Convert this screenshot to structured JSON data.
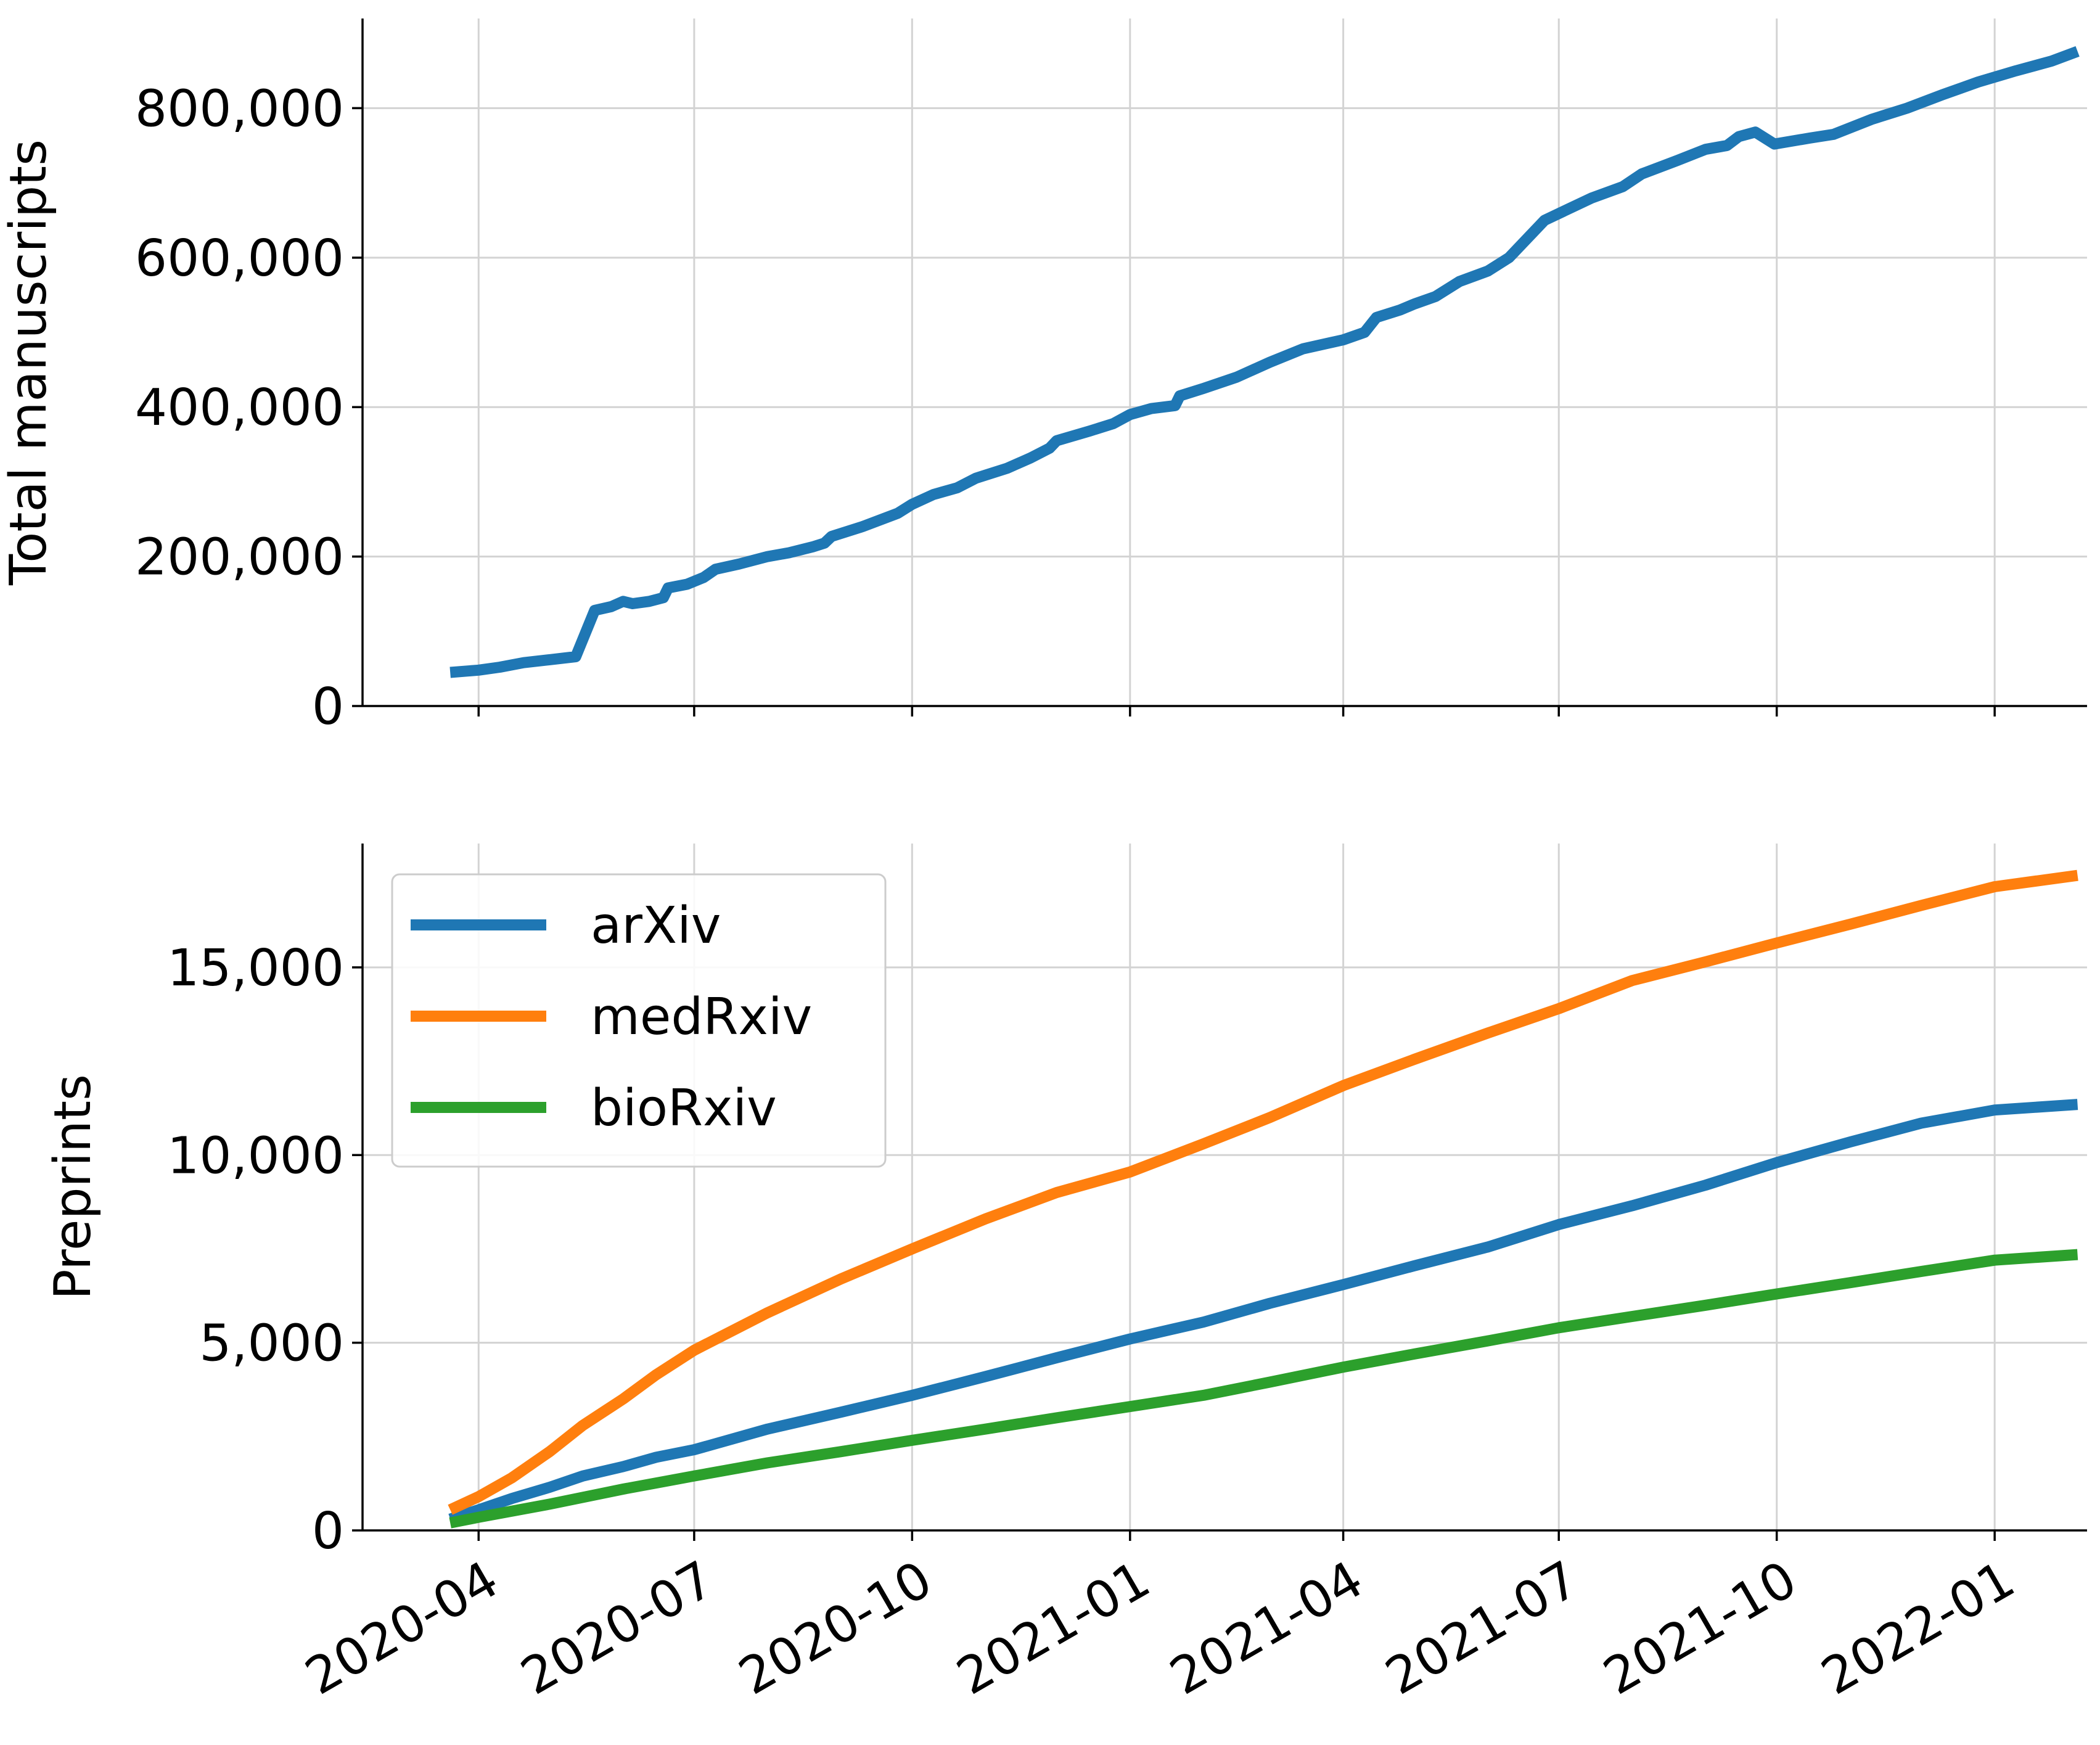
{
  "chart_data": [
    {
      "type": "line",
      "ylabel": "Total manuscripts",
      "xlabel": "",
      "ylim": [
        0,
        920000
      ],
      "xlim": [
        "2020-02-12",
        "2022-02-09"
      ],
      "grid": true,
      "y_ticks": [
        {
          "value": 0,
          "label": "0"
        },
        {
          "value": 200000,
          "label": "200,000"
        },
        {
          "value": 400000,
          "label": "400,000"
        },
        {
          "value": 600000,
          "label": "600,000"
        },
        {
          "value": 800000,
          "label": "800,000"
        }
      ],
      "x_ticks": [
        "2020-04-01",
        "2020-07-01",
        "2020-10-01",
        "2021-01-01",
        "2021-04-01",
        "2021-07-01",
        "2021-10-01",
        "2022-01-01"
      ],
      "show_x_tick_labels": false,
      "series": [
        {
          "color": "#1f77b4",
          "points": [
            [
              "2020-03-20",
              45000
            ],
            [
              "2020-04-01",
              48000
            ],
            [
              "2020-04-10",
              52000
            ],
            [
              "2020-04-20",
              58000
            ],
            [
              "2020-05-01",
              62000
            ],
            [
              "2020-05-12",
              66000
            ],
            [
              "2020-05-20",
              128000
            ],
            [
              "2020-05-27",
              133000
            ],
            [
              "2020-06-01",
              140000
            ],
            [
              "2020-06-05",
              137000
            ],
            [
              "2020-06-12",
              140000
            ],
            [
              "2020-06-18",
              145000
            ],
            [
              "2020-06-20",
              158000
            ],
            [
              "2020-06-28",
              163000
            ],
            [
              "2020-07-05",
              172000
            ],
            [
              "2020-07-10",
              183000
            ],
            [
              "2020-07-20",
              190000
            ],
            [
              "2020-08-01",
              200000
            ],
            [
              "2020-08-10",
              205000
            ],
            [
              "2020-08-20",
              213000
            ],
            [
              "2020-08-25",
              218000
            ],
            [
              "2020-08-28",
              227000
            ],
            [
              "2020-09-10",
              240000
            ],
            [
              "2020-09-25",
              258000
            ],
            [
              "2020-10-01",
              270000
            ],
            [
              "2020-10-10",
              283000
            ],
            [
              "2020-10-20",
              292000
            ],
            [
              "2020-10-28",
              305000
            ],
            [
              "2020-11-10",
              318000
            ],
            [
              "2020-11-20",
              332000
            ],
            [
              "2020-11-28",
              345000
            ],
            [
              "2020-12-01",
              355000
            ],
            [
              "2020-12-15",
              368000
            ],
            [
              "2020-12-25",
              378000
            ],
            [
              "2021-01-01",
              390000
            ],
            [
              "2021-01-10",
              398000
            ],
            [
              "2021-01-20",
              402000
            ],
            [
              "2021-01-22",
              415000
            ],
            [
              "2021-02-01",
              425000
            ],
            [
              "2021-02-15",
              440000
            ],
            [
              "2021-03-01",
              460000
            ],
            [
              "2021-03-15",
              478000
            ],
            [
              "2021-04-01",
              490000
            ],
            [
              "2021-04-10",
              500000
            ],
            [
              "2021-04-15",
              520000
            ],
            [
              "2021-04-25",
              530000
            ],
            [
              "2021-05-01",
              538000
            ],
            [
              "2021-05-10",
              548000
            ],
            [
              "2021-05-20",
              568000
            ],
            [
              "2021-06-01",
              582000
            ],
            [
              "2021-06-10",
              600000
            ],
            [
              "2021-06-25",
              650000
            ],
            [
              "2021-07-05",
              665000
            ],
            [
              "2021-07-15",
              680000
            ],
            [
              "2021-07-28",
              695000
            ],
            [
              "2021-08-05",
              712000
            ],
            [
              "2021-08-20",
              730000
            ],
            [
              "2021-09-01",
              745000
            ],
            [
              "2021-09-10",
              750000
            ],
            [
              "2021-09-15",
              762000
            ],
            [
              "2021-09-22",
              768000
            ],
            [
              "2021-09-30",
              752000
            ],
            [
              "2021-10-15",
              760000
            ],
            [
              "2021-10-25",
              765000
            ],
            [
              "2021-11-10",
              785000
            ],
            [
              "2021-11-25",
              800000
            ],
            [
              "2021-12-10",
              818000
            ],
            [
              "2021-12-25",
              835000
            ],
            [
              "2022-01-10",
              850000
            ],
            [
              "2022-01-25",
              863000
            ],
            [
              "2022-02-05",
              876000
            ]
          ]
        }
      ]
    },
    {
      "type": "line",
      "ylabel": "Preprints",
      "xlabel": "",
      "ylim": [
        0,
        18300
      ],
      "xlim": [
        "2020-02-12",
        "2022-02-09"
      ],
      "grid": true,
      "legend": "top-left",
      "y_ticks": [
        {
          "value": 0,
          "label": "0"
        },
        {
          "value": 5000,
          "label": "5,000"
        },
        {
          "value": 10000,
          "label": "10,000"
        },
        {
          "value": 15000,
          "label": "15,000"
        }
      ],
      "x_ticks": [
        "2020-04-01",
        "2020-07-01",
        "2020-10-01",
        "2021-01-01",
        "2021-04-01",
        "2021-07-01",
        "2021-10-01",
        "2022-01-01"
      ],
      "x_tick_labels": [
        "2020-04",
        "2020-07",
        "2020-10",
        "2021-01",
        "2021-04",
        "2021-07",
        "2021-10",
        "2022-01"
      ],
      "series": [
        {
          "name": "arXiv",
          "color": "#1f77b4",
          "points": [
            [
              "2020-03-20",
              300
            ],
            [
              "2020-04-01",
              550
            ],
            [
              "2020-04-15",
              850
            ],
            [
              "2020-05-01",
              1150
            ],
            [
              "2020-05-15",
              1450
            ],
            [
              "2020-06-01",
              1700
            ],
            [
              "2020-06-15",
              1950
            ],
            [
              "2020-07-01",
              2150
            ],
            [
              "2020-08-01",
              2700
            ],
            [
              "2020-09-01",
              3150
            ],
            [
              "2020-10-01",
              3600
            ],
            [
              "2020-11-01",
              4100
            ],
            [
              "2020-12-01",
              4600
            ],
            [
              "2021-01-01",
              5100
            ],
            [
              "2021-02-01",
              5550
            ],
            [
              "2021-03-01",
              6050
            ],
            [
              "2021-04-01",
              6550
            ],
            [
              "2021-05-01",
              7050
            ],
            [
              "2021-06-01",
              7550
            ],
            [
              "2021-07-01",
              8150
            ],
            [
              "2021-08-01",
              8650
            ],
            [
              "2021-09-01",
              9200
            ],
            [
              "2021-10-01",
              9800
            ],
            [
              "2021-11-01",
              10350
            ],
            [
              "2021-12-01",
              10850
            ],
            [
              "2022-01-01",
              11200
            ],
            [
              "2022-02-05",
              11350
            ]
          ]
        },
        {
          "name": "medRxiv",
          "color": "#ff7f0e",
          "points": [
            [
              "2020-03-20",
              550
            ],
            [
              "2020-04-01",
              900
            ],
            [
              "2020-04-15",
              1400
            ],
            [
              "2020-05-01",
              2100
            ],
            [
              "2020-05-15",
              2800
            ],
            [
              "2020-06-01",
              3500
            ],
            [
              "2020-06-15",
              4150
            ],
            [
              "2020-07-01",
              4800
            ],
            [
              "2020-08-01",
              5800
            ],
            [
              "2020-09-01",
              6700
            ],
            [
              "2020-10-01",
              7500
            ],
            [
              "2020-11-01",
              8300
            ],
            [
              "2020-12-01",
              9000
            ],
            [
              "2021-01-01",
              9550
            ],
            [
              "2021-02-01",
              10300
            ],
            [
              "2021-03-01",
              11000
            ],
            [
              "2021-04-01",
              11850
            ],
            [
              "2021-05-01",
              12550
            ],
            [
              "2021-06-01",
              13250
            ],
            [
              "2021-07-01",
              13900
            ],
            [
              "2021-08-01",
              14650
            ],
            [
              "2021-09-01",
              15150
            ],
            [
              "2021-10-01",
              15650
            ],
            [
              "2021-11-01",
              16150
            ],
            [
              "2021-12-01",
              16650
            ],
            [
              "2022-01-01",
              17150
            ],
            [
              "2022-02-05",
              17450
            ]
          ]
        },
        {
          "name": "bioRxiv",
          "color": "#2ca02c",
          "points": [
            [
              "2020-03-20",
              200
            ],
            [
              "2020-04-01",
              350
            ],
            [
              "2020-05-01",
              700
            ],
            [
              "2020-06-01",
              1100
            ],
            [
              "2020-07-01",
              1450
            ],
            [
              "2020-08-01",
              1800
            ],
            [
              "2020-09-01",
              2100
            ],
            [
              "2020-10-01",
              2400
            ],
            [
              "2020-11-01",
              2700
            ],
            [
              "2020-12-01",
              3000
            ],
            [
              "2021-01-01",
              3300
            ],
            [
              "2021-02-01",
              3600
            ],
            [
              "2021-03-01",
              3950
            ],
            [
              "2021-04-01",
              4350
            ],
            [
              "2021-05-01",
              4700
            ],
            [
              "2021-06-01",
              5050
            ],
            [
              "2021-07-01",
              5400
            ],
            [
              "2021-08-01",
              5700
            ],
            [
              "2021-09-01",
              6000
            ],
            [
              "2021-10-01",
              6300
            ],
            [
              "2021-11-01",
              6600
            ],
            [
              "2021-12-01",
              6900
            ],
            [
              "2022-01-01",
              7200
            ],
            [
              "2022-02-05",
              7350
            ]
          ]
        }
      ]
    }
  ]
}
